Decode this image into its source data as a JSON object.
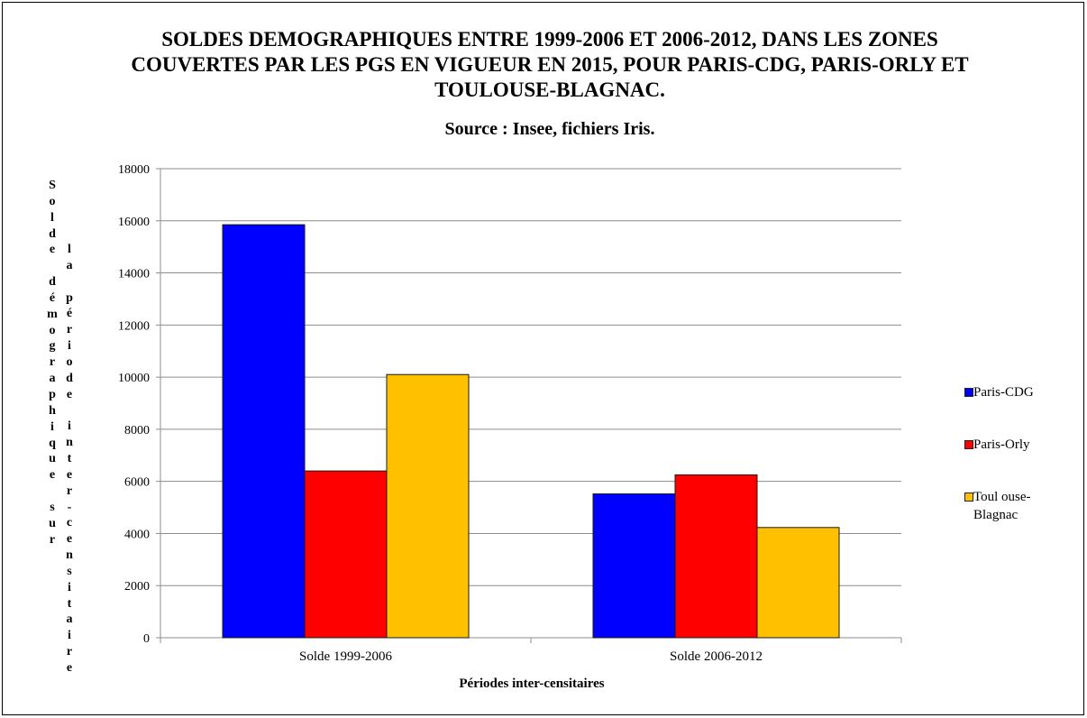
{
  "chart_data": {
    "type": "bar",
    "title": "SOLDES DEMOGRAPHIQUES ENTRE 1999-2006 ET 2006-2012, DANS LES ZONES COUVERTES PAR LES PGS EN VIGUEUR EN 2015, POUR PARIS-CDG, PARIS-ORLY ET TOULOUSE-BLAGNAC.",
    "subtitle": "Source : Insee, fichiers Iris.",
    "xlabel": "Périodes inter-censitaires",
    "ylabel": "Solde démographique sur la période inter-censitaire",
    "categories": [
      "Solde 1999-2006",
      "Solde 2006-2012"
    ],
    "series": [
      {
        "name": "Paris-CDG",
        "color": "#0000ff",
        "values": [
          15850,
          5520
        ]
      },
      {
        "name": "Paris-Orly",
        "color": "#ff0000",
        "values": [
          6400,
          6250
        ]
      },
      {
        "name": "Toulouse-Blagnac",
        "color": "#ffc000",
        "values": [
          10100,
          4230
        ]
      }
    ],
    "ylim": [
      0,
      18000
    ],
    "yticks": [
      "0",
      "2000",
      "4000",
      "6000",
      "8000",
      "10000",
      "12000",
      "14000",
      "16000",
      "18000"
    ],
    "grid": true,
    "legend_position": "right"
  },
  "legend": {
    "labels": [
      "Paris-CDG",
      "Paris-Orly",
      "Toul ouse-Blagnac"
    ]
  }
}
